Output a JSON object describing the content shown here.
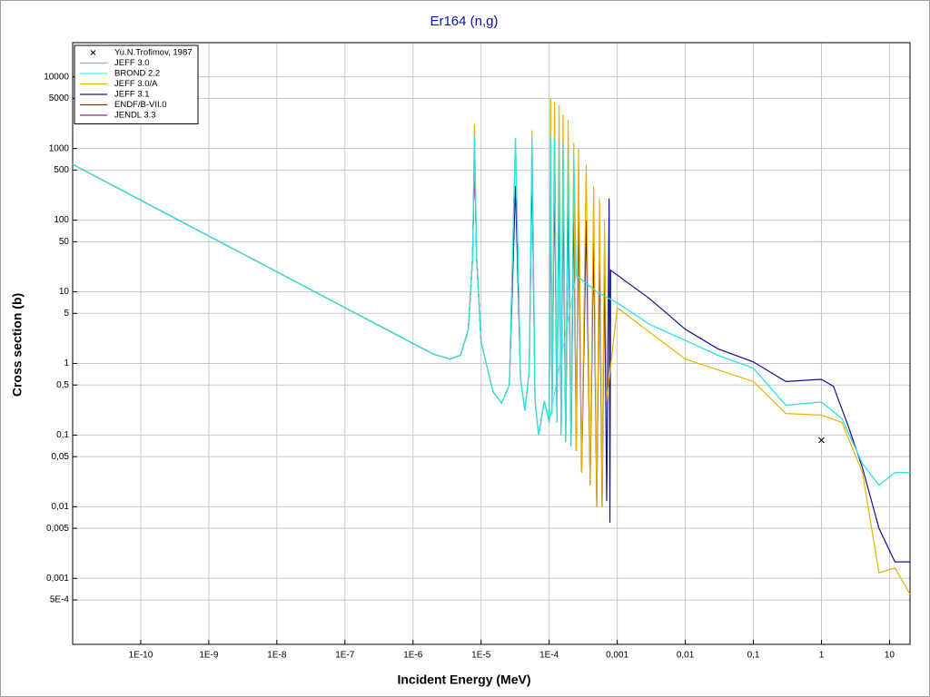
{
  "chart_data": {
    "type": "line",
    "title": "Er164 (n,g)",
    "x_label": "Incident Energy (MeV)",
    "y_label": "Cross section (b)",
    "xscale": "log",
    "yscale": "log",
    "grid": true,
    "legend": "upper left",
    "xlim": [
      1e-11,
      20
    ],
    "ylim": [
      0.00012,
      30000
    ],
    "xticks": [
      {
        "value": 1e-10,
        "label": "1E-10"
      },
      {
        "value": 1e-09,
        "label": "1E-9"
      },
      {
        "value": 1e-08,
        "label": "1E-8"
      },
      {
        "value": 1e-07,
        "label": "1E-7"
      },
      {
        "value": 1e-06,
        "label": "1E-6"
      },
      {
        "value": 1e-05,
        "label": "1E-5"
      },
      {
        "value": 0.0001,
        "label": "1E-4"
      },
      {
        "value": 0.001,
        "label": "0,001"
      },
      {
        "value": 0.01,
        "label": "0,01"
      },
      {
        "value": 0.1,
        "label": "0,1"
      },
      1,
      10
    ],
    "yticks": [
      10000,
      5000,
      1000,
      500,
      100,
      50,
      10,
      5,
      1,
      {
        "value": 0.5,
        "label": "0,5"
      },
      {
        "value": 0.1,
        "label": "0,1"
      },
      {
        "value": 0.05,
        "label": "0,05"
      },
      {
        "value": 0.01,
        "label": "0,01"
      },
      {
        "value": 0.005,
        "label": "0,005"
      },
      {
        "value": 0.001,
        "label": "0,001"
      },
      {
        "value": 0.0005,
        "label": "5E-4"
      }
    ],
    "series": [
      {
        "name": "Yu.N.Trofimov, 1987",
        "color": "#000000",
        "marker": "x",
        "x": [
          1
        ],
        "values": [
          0.085
        ]
      },
      {
        "name": "JEFF 3.0",
        "color": "#30e0e0",
        "x": [
          1e-11,
          1e-10,
          1e-09,
          1e-08,
          1e-07,
          1e-06,
          2e-06,
          3.5e-06,
          5e-06,
          6.5e-06,
          7.5e-06,
          8e-06,
          8.6e-06,
          1e-05,
          1.5e-05,
          2e-05,
          2.6e-05,
          3.2e-05,
          3.8e-05,
          4.4e-05,
          5.1e-05,
          5.6e-05,
          6.2e-05,
          7e-05,
          8.5e-05,
          0.0001,
          0.000105,
          0.00011,
          0.00012,
          0.00013,
          0.00014,
          0.00015,
          0.00016,
          0.000175,
          0.00019,
          0.00021,
          0.00023,
          0.00025,
          0.0005,
          0.001,
          0.003,
          0.01,
          0.03,
          0.1,
          0.3,
          1,
          2,
          4,
          7,
          12,
          20
        ],
        "values": [
          600,
          190,
          60,
          19,
          6,
          1.9,
          1.35,
          1.15,
          1.3,
          3,
          30,
          1500,
          30,
          2,
          0.4,
          0.28,
          0.5,
          1400,
          0.6,
          0.22,
          0.8,
          1500,
          0.3,
          0.1,
          0.3,
          0.15,
          1500,
          0.2,
          1400,
          0.15,
          1300,
          0.1,
          1200,
          0.08,
          1000,
          0.07,
          800,
          17,
          10,
          7,
          3.5,
          2.1,
          1.3,
          0.86,
          0.26,
          0.29,
          0.17,
          0.04,
          0.02,
          0.03,
          0.03
        ]
      },
      {
        "name": "BROND 2.2",
        "color": "#60e8e8",
        "x": [
          1e-11,
          1e-10,
          1e-09,
          1e-08,
          1e-07,
          1e-06,
          2e-06,
          3.5e-06,
          5e-06,
          6.5e-06,
          7.5e-06,
          8e-06,
          8.6e-06,
          1e-05,
          1.5e-05,
          2e-05,
          2.6e-05,
          3.2e-05,
          3.8e-05,
          4.4e-05,
          5.1e-05,
          5.6e-05,
          6.2e-05,
          7e-05,
          8.5e-05,
          0.0001,
          0.00025,
          0.0005,
          0.001,
          0.003,
          0.01,
          0.03,
          0.1,
          0.3,
          1,
          2,
          4,
          7,
          12,
          20
        ],
        "values": [
          600,
          190,
          60,
          19,
          6,
          1.9,
          1.35,
          1.15,
          1.3,
          3,
          30,
          1500,
          30,
          2,
          0.4,
          0.28,
          0.5,
          1400,
          0.6,
          0.22,
          0.8,
          1500,
          0.3,
          0.1,
          0.3,
          0.15,
          17,
          10,
          7,
          3.5,
          2.1,
          1.3,
          0.86,
          0.26,
          0.29,
          0.17,
          0.04,
          0.02,
          0.03,
          0.03
        ]
      },
      {
        "name": "JEFF 3.0/A",
        "color": "#f0b000",
        "x": [
          1e-11,
          1e-10,
          1e-09,
          1e-08,
          1e-07,
          1e-06,
          2e-06,
          3.5e-06,
          5e-06,
          6.5e-06,
          7.5e-06,
          8e-06,
          8.6e-06,
          1e-05,
          1.5e-05,
          2e-05,
          2.6e-05,
          3.2e-05,
          3.8e-05,
          4.4e-05,
          5.1e-05,
          5.6e-05,
          6.2e-05,
          7e-05,
          8.5e-05,
          0.0001,
          0.000105,
          0.00011,
          0.00012,
          0.00013,
          0.00014,
          0.00015,
          0.00016,
          0.000175,
          0.00019,
          0.00021,
          0.00023,
          0.00025,
          0.00027,
          0.0003,
          0.00035,
          0.0004,
          0.00045,
          0.0005,
          0.00055,
          0.0006,
          0.00065,
          0.0007,
          0.001,
          0.01,
          0.1,
          0.3,
          1,
          2,
          4,
          7,
          12,
          20
        ],
        "values": [
          600,
          190,
          60,
          19,
          6,
          1.9,
          1.35,
          1.15,
          1.3,
          3,
          30,
          2200,
          30,
          2,
          0.4,
          0.28,
          0.5,
          1400,
          0.6,
          0.22,
          0.8,
          1800,
          0.3,
          0.1,
          0.3,
          0.15,
          5000,
          0.2,
          4500,
          0.15,
          4000,
          0.1,
          3000,
          0.08,
          2500,
          0.07,
          1200,
          0.06,
          1000,
          0.03,
          600,
          0.02,
          300,
          0.01,
          200,
          0.01,
          100,
          0.3,
          6,
          1.15,
          0.56,
          0.2,
          0.19,
          0.15,
          0.03,
          0.0012,
          0.0014,
          0.0006
        ]
      },
      {
        "name": "JEFF 3.1",
        "color": "#101090",
        "x": [
          1e-11,
          1e-10,
          1e-09,
          1e-08,
          1e-07,
          1e-06,
          2e-06,
          3.5e-06,
          5e-06,
          6.5e-06,
          7.5e-06,
          8e-06,
          8.6e-06,
          1e-05,
          1.5e-05,
          2e-05,
          2.6e-05,
          3.2e-05,
          3.8e-05,
          4.4e-05,
          5.1e-05,
          5.6e-05,
          6.2e-05,
          7e-05,
          8.5e-05,
          0.0001,
          0.000105,
          0.00011,
          0.00012,
          0.00013,
          0.00014,
          0.00015,
          0.00016,
          0.000175,
          0.00019,
          0.00021,
          0.00023,
          0.00025,
          0.00027,
          0.0003,
          0.00035,
          0.0004,
          0.00045,
          0.0005,
          0.00055,
          0.0006,
          0.00065,
          0.0007,
          0.00076,
          0.00078,
          0.0008,
          0.003,
          0.01,
          0.03,
          0.1,
          0.3,
          1,
          1.5,
          2.5,
          4,
          7,
          12,
          20
        ],
        "values": [
          600,
          190,
          60,
          19,
          6,
          1.9,
          1.35,
          1.15,
          1.3,
          3,
          30,
          1000,
          30,
          2,
          0.4,
          0.28,
          0.5,
          300,
          0.6,
          0.22,
          0.8,
          500,
          0.3,
          0.1,
          0.3,
          0.15,
          600,
          0.2,
          500,
          0.15,
          400,
          0.1,
          300,
          0.08,
          250,
          0.07,
          200,
          0.06,
          150,
          0.03,
          100,
          0.02,
          60,
          0.01,
          40,
          0.01,
          30,
          0.012,
          200,
          0.006,
          20,
          8,
          3,
          1.6,
          1.05,
          0.56,
          0.6,
          0.48,
          0.13,
          0.035,
          0.005,
          0.0017,
          0.0017
        ]
      },
      {
        "name": "ENDF/B-VII.0",
        "color": "#e00000",
        "x": [
          1e-11,
          1e-10,
          1e-09,
          1e-08,
          1e-07,
          1e-06,
          2e-06,
          3.5e-06,
          5e-06,
          6.5e-06,
          7.5e-06,
          8e-06,
          8.6e-06,
          1e-05
        ],
        "values": [
          600,
          190,
          60,
          19,
          6,
          1.9,
          1.35,
          1.15,
          1.3,
          3,
          30,
          1000,
          30,
          2
        ]
      },
      {
        "name": "JENDL 3.3",
        "color": "#9020a0",
        "x": [
          1e-11,
          1e-10,
          1e-09,
          1e-08,
          1e-07,
          1e-06,
          2e-06,
          3.5e-06,
          5e-06,
          6.5e-06,
          7.5e-06,
          8e-06,
          8.6e-06,
          1e-05
        ],
        "values": [
          600,
          190,
          60,
          19,
          6,
          1.9,
          1.35,
          1.15,
          1.3,
          3,
          30,
          1000,
          30,
          2
        ]
      }
    ]
  }
}
